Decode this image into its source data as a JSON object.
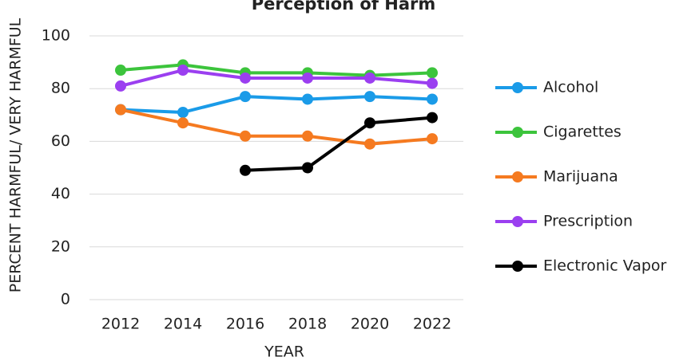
{
  "chart_data": {
    "type": "line",
    "title": "Perception of Harm",
    "x_label": "YEAR",
    "y_label": "PERCENT HARMFUL/ VERY HARMFUL",
    "categories": [
      "2012",
      "2014",
      "2016",
      "2018",
      "2020",
      "2022"
    ],
    "series": [
      {
        "name": "Alcohol",
        "color": "#1a9be8",
        "values": [
          72,
          71,
          77,
          76,
          77,
          76
        ]
      },
      {
        "name": "Cigarettes",
        "color": "#3cc43c",
        "values": [
          87,
          89,
          86,
          86,
          85,
          86
        ]
      },
      {
        "name": "Marijuana",
        "color": "#f57a20",
        "values": [
          72,
          67,
          62,
          62,
          59,
          61
        ]
      },
      {
        "name": "Prescription",
        "color": "#9b3ff0",
        "values": [
          81,
          87,
          84,
          84,
          84,
          82
        ]
      },
      {
        "name": "Electronic Vapor",
        "color": "#000000",
        "values": [
          null,
          null,
          49,
          50,
          67,
          69
        ]
      }
    ],
    "ylim": [
      0,
      100
    ],
    "yticks": [
      0,
      20,
      40,
      60,
      80,
      100
    ],
    "grid": true,
    "legend": "right"
  }
}
